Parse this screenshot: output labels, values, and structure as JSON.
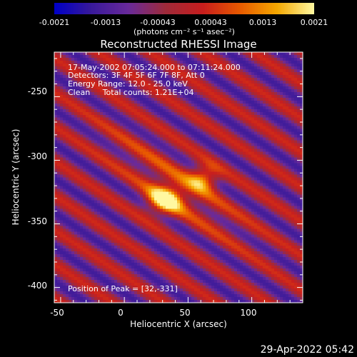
{
  "colorbar": {
    "ticks": [
      "-0.0021",
      "-0.0013",
      "-0.00043",
      "0.00043",
      "0.0013",
      "0.0021"
    ],
    "tick_values": [
      -0.0021,
      -0.0013,
      -0.00043,
      0.00043,
      0.0013,
      0.0021
    ],
    "units": "(photons cm⁻² s⁻¹ asec⁻²)",
    "colors": [
      "#0000c8",
      "#3a1a9a",
      "#6a2a9a",
      "#a02a3a",
      "#c81e1e",
      "#e85a00",
      "#f5a800",
      "#fff8a0"
    ]
  },
  "title": "Reconstructed RHESSI Image",
  "annotations": {
    "time_range": "17-May-2002 07:05:24.000 to 07:11:24.000",
    "detectors": "Detectors: 3F 4F 5F 6F 7F 8F, Att 0",
    "energy": "Energy Range: 12.0 - 25.0 keV",
    "clean_label": "Clean",
    "total_counts": "Total counts: 1.21E+04",
    "peak": "Position of Peak = [32,-331]"
  },
  "chart_data": {
    "type": "heatmap",
    "title": "Reconstructed RHESSI Image",
    "xlabel": "Heliocentric X (arcsec)",
    "ylabel": "Heliocentric Y (arcsec)",
    "xlim": [
      -55,
      140
    ],
    "ylim": [
      -412,
      -215
    ],
    "xticks": [
      "-50",
      "0",
      "50",
      "100"
    ],
    "xtick_values": [
      -50,
      0,
      50,
      100
    ],
    "yticks": [
      "-250",
      "-300",
      "-350",
      "-400"
    ],
    "ytick_values": [
      -250,
      -300,
      -350,
      -400
    ],
    "peak_position": [
      32,
      -331
    ]
  },
  "timestamp": "29-Apr-2022 05:42"
}
